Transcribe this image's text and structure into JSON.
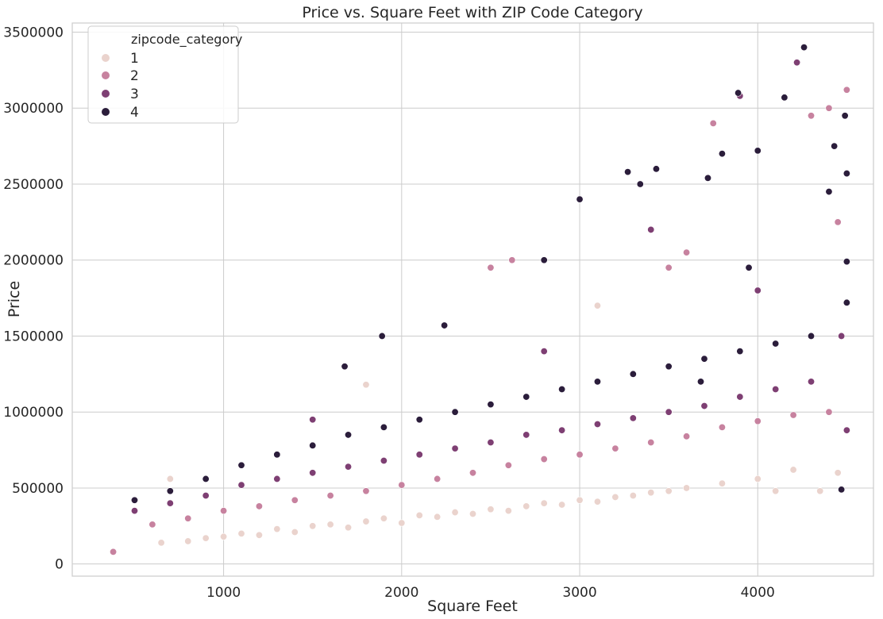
{
  "chart_data": {
    "type": "scatter",
    "title": "Price vs. Square Feet with ZIP Code Category",
    "xlabel": "Square Feet",
    "ylabel": "Price",
    "xlim": [
      150,
      4650
    ],
    "ylim": [
      -80000,
      3560000
    ],
    "xticks": [
      1000,
      2000,
      3000,
      4000
    ],
    "yticks": [
      0,
      500000,
      1000000,
      1500000,
      2000000,
      2500000,
      3000000,
      3500000
    ],
    "xtick_labels": [
      "1000",
      "2000",
      "3000",
      "4000"
    ],
    "ytick_labels": [
      "0",
      "500000",
      "1000000",
      "1500000",
      "2000000",
      "2500000",
      "3000000",
      "3500000"
    ],
    "grid": true,
    "legend": {
      "title": "zipcode_category",
      "placement": "top-left",
      "entries": [
        "1",
        "2",
        "3",
        "4"
      ]
    },
    "series": [
      {
        "name": "1",
        "color": "#ead3cd",
        "points": [
          [
            650,
            140000
          ],
          [
            800,
            150000
          ],
          [
            900,
            170000
          ],
          [
            1000,
            180000
          ],
          [
            1100,
            200000
          ],
          [
            1200,
            190000
          ],
          [
            1300,
            230000
          ],
          [
            1400,
            210000
          ],
          [
            1500,
            250000
          ],
          [
            1600,
            260000
          ],
          [
            1700,
            240000
          ],
          [
            1800,
            280000
          ],
          [
            1900,
            300000
          ],
          [
            2000,
            270000
          ],
          [
            2100,
            320000
          ],
          [
            2200,
            310000
          ],
          [
            2300,
            340000
          ],
          [
            2400,
            330000
          ],
          [
            2500,
            360000
          ],
          [
            2600,
            350000
          ],
          [
            2700,
            380000
          ],
          [
            2800,
            400000
          ],
          [
            2900,
            390000
          ],
          [
            3000,
            420000
          ],
          [
            3100,
            410000
          ],
          [
            3200,
            440000
          ],
          [
            3300,
            450000
          ],
          [
            3400,
            470000
          ],
          [
            3500,
            480000
          ],
          [
            3600,
            500000
          ],
          [
            3800,
            530000
          ],
          [
            4000,
            560000
          ],
          [
            4100,
            480000
          ],
          [
            4200,
            620000
          ],
          [
            4350,
            480000
          ],
          [
            4450,
            600000
          ],
          [
            700,
            560000
          ],
          [
            1800,
            1180000
          ],
          [
            3100,
            1700000
          ]
        ]
      },
      {
        "name": "2",
        "color": "#c7829f",
        "points": [
          [
            600,
            260000
          ],
          [
            800,
            300000
          ],
          [
            1000,
            350000
          ],
          [
            1200,
            380000
          ],
          [
            1400,
            420000
          ],
          [
            1600,
            450000
          ],
          [
            1800,
            480000
          ],
          [
            2000,
            520000
          ],
          [
            2200,
            560000
          ],
          [
            2400,
            600000
          ],
          [
            2600,
            650000
          ],
          [
            2800,
            690000
          ],
          [
            3000,
            720000
          ],
          [
            3200,
            760000
          ],
          [
            3400,
            800000
          ],
          [
            3600,
            840000
          ],
          [
            3800,
            900000
          ],
          [
            4000,
            940000
          ],
          [
            4200,
            980000
          ],
          [
            4400,
            1000000
          ],
          [
            2500,
            1950000
          ],
          [
            2620,
            2000000
          ],
          [
            3750,
            2900000
          ],
          [
            4400,
            3000000
          ],
          [
            4500,
            3120000
          ],
          [
            4300,
            2950000
          ],
          [
            4450,
            2250000
          ],
          [
            3600,
            2050000
          ],
          [
            380,
            80000
          ],
          [
            3500,
            1950000
          ]
        ]
      },
      {
        "name": "3",
        "color": "#7e3f73",
        "points": [
          [
            500,
            350000
          ],
          [
            700,
            400000
          ],
          [
            900,
            450000
          ],
          [
            1100,
            520000
          ],
          [
            1300,
            560000
          ],
          [
            1500,
            600000
          ],
          [
            1700,
            640000
          ],
          [
            1900,
            680000
          ],
          [
            2100,
            720000
          ],
          [
            2300,
            760000
          ],
          [
            2500,
            800000
          ],
          [
            2700,
            850000
          ],
          [
            2900,
            880000
          ],
          [
            3100,
            920000
          ],
          [
            3300,
            960000
          ],
          [
            3500,
            1000000
          ],
          [
            3700,
            1040000
          ],
          [
            3900,
            1100000
          ],
          [
            4100,
            1150000
          ],
          [
            4300,
            1200000
          ],
          [
            4500,
            880000
          ],
          [
            4220,
            3300000
          ],
          [
            3900,
            3080000
          ],
          [
            4470,
            1500000
          ],
          [
            2800,
            1400000
          ],
          [
            3400,
            2200000
          ],
          [
            4000,
            1800000
          ],
          [
            1500,
            950000
          ]
        ]
      },
      {
        "name": "4",
        "color": "#2b1d3b",
        "points": [
          [
            500,
            420000
          ],
          [
            700,
            480000
          ],
          [
            900,
            560000
          ],
          [
            1100,
            650000
          ],
          [
            1300,
            720000
          ],
          [
            1500,
            780000
          ],
          [
            1700,
            850000
          ],
          [
            1900,
            900000
          ],
          [
            2100,
            950000
          ],
          [
            2300,
            1000000
          ],
          [
            2500,
            1050000
          ],
          [
            2700,
            1100000
          ],
          [
            2900,
            1150000
          ],
          [
            3100,
            1200000
          ],
          [
            3300,
            1250000
          ],
          [
            3500,
            1300000
          ],
          [
            3700,
            1350000
          ],
          [
            3900,
            1400000
          ],
          [
            4100,
            1450000
          ],
          [
            4300,
            1500000
          ],
          [
            4260,
            3400000
          ],
          [
            3890,
            3100000
          ],
          [
            4150,
            3070000
          ],
          [
            4490,
            2950000
          ],
          [
            4430,
            2750000
          ],
          [
            4000,
            2720000
          ],
          [
            3800,
            2700000
          ],
          [
            3270,
            2580000
          ],
          [
            3430,
            2600000
          ],
          [
            3000,
            2400000
          ],
          [
            3340,
            2500000
          ],
          [
            3720,
            2540000
          ],
          [
            4500,
            2570000
          ],
          [
            4400,
            2450000
          ],
          [
            3680,
            1200000
          ],
          [
            4470,
            490000
          ],
          [
            1890,
            1500000
          ],
          [
            2240,
            1570000
          ],
          [
            1680,
            1300000
          ],
          [
            2800,
            2000000
          ],
          [
            4500,
            1990000
          ],
          [
            4500,
            1720000
          ],
          [
            3950,
            1950000
          ]
        ]
      }
    ]
  }
}
